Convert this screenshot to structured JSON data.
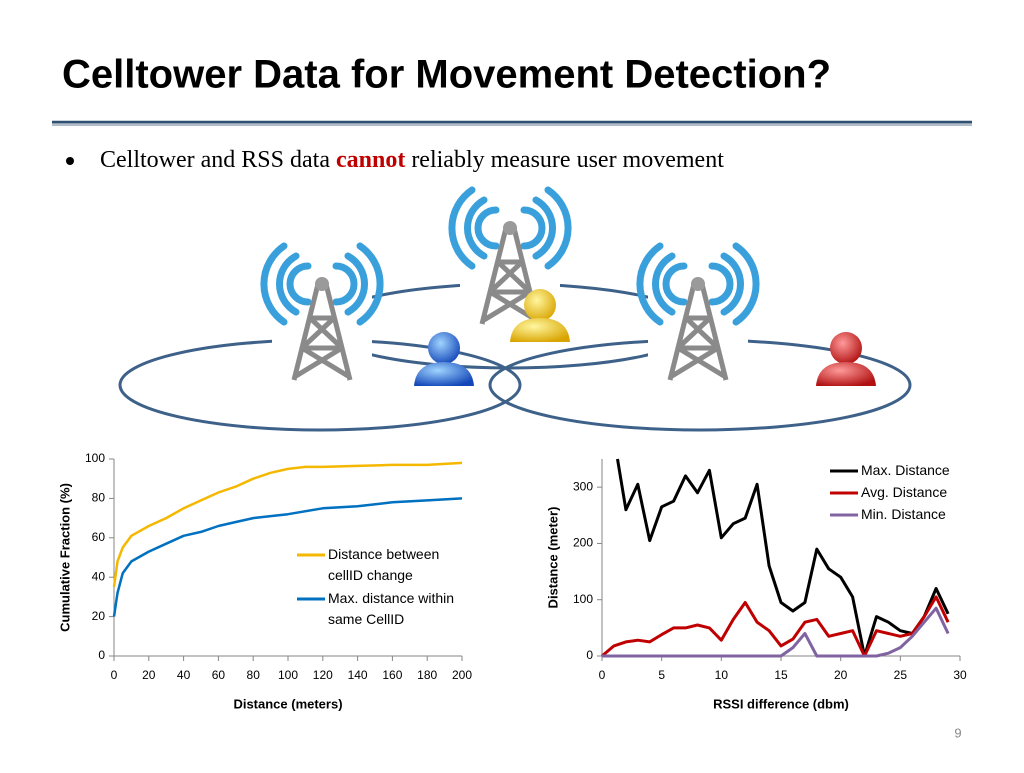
{
  "slide": {
    "title": "Celltower Data for Movement Detection?",
    "bullet_prefix": "Celltower and RSS data ",
    "bullet_emphasis": "cannot",
    "bullet_suffix": " reliably measure user movement",
    "page_number": "9"
  },
  "chart_data": [
    {
      "type": "line",
      "xlabel": "Distance (meters)",
      "ylabel": "Cumulative Fraction (%)",
      "xlim": [
        0,
        200
      ],
      "xticks": [
        0,
        20,
        40,
        60,
        80,
        100,
        120,
        140,
        160,
        180,
        200
      ],
      "ylim": [
        0,
        100
      ],
      "yticks": [
        0,
        20,
        40,
        60,
        80,
        100
      ],
      "legend": "center right",
      "series": [
        {
          "name": "Distance between cellID change",
          "color": "#f5b800",
          "x": [
            0,
            2,
            5,
            10,
            20,
            30,
            40,
            50,
            60,
            70,
            80,
            90,
            100,
            110,
            120,
            140,
            160,
            180,
            200
          ],
          "values": [
            35,
            48,
            55,
            61,
            66,
            70,
            75,
            79,
            83,
            86,
            90,
            93,
            95,
            96,
            96,
            96.5,
            97,
            97,
            98
          ]
        },
        {
          "name": "Max. distance within same CellID",
          "color": "#0070c0",
          "x": [
            0,
            2,
            5,
            10,
            20,
            30,
            40,
            50,
            60,
            70,
            80,
            90,
            100,
            120,
            140,
            160,
            180,
            200
          ],
          "values": [
            20,
            32,
            42,
            48,
            53,
            57,
            61,
            63,
            66,
            68,
            70,
            71,
            72,
            75,
            76,
            78,
            79,
            80
          ]
        }
      ]
    },
    {
      "type": "line",
      "xlabel": "RSSI difference (dbm)",
      "ylabel": "Distance (meter)",
      "xlim": [
        0,
        30
      ],
      "xticks": [
        0,
        5,
        10,
        15,
        20,
        25,
        30
      ],
      "ylim": [
        0,
        350
      ],
      "yticks": [
        0,
        100,
        200,
        300
      ],
      "legend": "upper right",
      "series": [
        {
          "name": "Max. Distance",
          "color": "#000000",
          "x": [
            1.3,
            2,
            3,
            4,
            5,
            6,
            7,
            8,
            9,
            10,
            11,
            12,
            13,
            14,
            15,
            16,
            17,
            18,
            19,
            20,
            21,
            22,
            23,
            24,
            25,
            26,
            27,
            28,
            29
          ],
          "values": [
            350,
            260,
            305,
            205,
            265,
            275,
            320,
            290,
            330,
            210,
            235,
            245,
            305,
            160,
            95,
            80,
            95,
            190,
            155,
            140,
            105,
            0,
            70,
            60,
            45,
            40,
            70,
            120,
            75
          ]
        },
        {
          "name": "Avg. Distance",
          "color": "#c00000",
          "x": [
            0,
            1,
            2,
            3,
            4,
            5,
            6,
            7,
            8,
            9,
            10,
            11,
            12,
            13,
            14,
            15,
            16,
            17,
            18,
            19,
            20,
            21,
            22,
            23,
            24,
            25,
            26,
            27,
            28,
            29
          ],
          "values": [
            0,
            18,
            25,
            28,
            25,
            38,
            50,
            50,
            55,
            50,
            28,
            65,
            95,
            60,
            45,
            18,
            30,
            60,
            65,
            35,
            40,
            45,
            0,
            45,
            40,
            35,
            40,
            70,
            105,
            60
          ]
        },
        {
          "name": "Min. Distance",
          "color": "#8064a2",
          "x": [
            0,
            1,
            2,
            3,
            4,
            5,
            6,
            7,
            8,
            9,
            10,
            11,
            12,
            13,
            14,
            15,
            16,
            17,
            18,
            19,
            20,
            21,
            22,
            23,
            24,
            25,
            26,
            27,
            28,
            29
          ],
          "values": [
            0,
            0,
            0,
            0,
            0,
            0,
            0,
            0,
            0,
            0,
            0,
            0,
            0,
            0,
            0,
            0,
            15,
            40,
            0,
            0,
            0,
            0,
            0,
            0,
            5,
            15,
            35,
            60,
            85,
            40
          ]
        }
      ]
    }
  ]
}
